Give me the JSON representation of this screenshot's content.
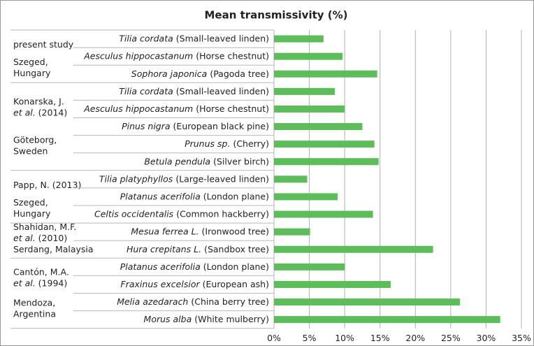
{
  "chart_data": {
    "type": "bar",
    "orientation": "horizontal",
    "title": "Mean transmissivity (%)",
    "color": "#5cbd5a",
    "grid": true,
    "xlim": [
      0,
      35
    ],
    "xticks": [
      {
        "value": 0,
        "label": "0%"
      },
      {
        "value": 5,
        "label": "5%"
      },
      {
        "value": 10,
        "label": "10%"
      },
      {
        "value": 15,
        "label": "15%"
      },
      {
        "value": 20,
        "label": "20%"
      },
      {
        "value": 25,
        "label": "25%"
      },
      {
        "value": 30,
        "label": "30%"
      },
      {
        "value": 35,
        "label": "35%"
      }
    ],
    "groups": [
      {
        "study": [
          [
            {
              "text": "present study"
            }
          ]
        ],
        "location": [
          [
            {
              "text": "Szeged,"
            }
          ],
          [
            {
              "text": "Hungary"
            }
          ]
        ],
        "rows": [
          {
            "species": "Tilia cordata",
            "common": "(Small-leaved linden)",
            "value": 7.0
          },
          {
            "species": "Aesculus hippocastanum",
            "common": "(Horse chestnut)",
            "value": 9.7
          },
          {
            "species": "Sophora japonica",
            "common": "(Pagoda tree)",
            "value": 14.6
          }
        ]
      },
      {
        "study": [
          [
            {
              "text": "Konarska, J."
            }
          ],
          [
            {
              "text": "et al.",
              "italic": true
            },
            {
              "text": "(2014)"
            }
          ]
        ],
        "location": [
          [
            {
              "text": "Göteborg,"
            }
          ],
          [
            {
              "text": "Sweden"
            }
          ]
        ],
        "rows": [
          {
            "species": "Tilia cordata",
            "common": "(Small-leaved linden)",
            "value": 8.6
          },
          {
            "species": "Aesculus hippocastanum",
            "common": "(Horse chestnut)",
            "value": 10.0
          },
          {
            "species": "Pinus nigra",
            "common": "(European black pine)",
            "value": 12.5
          },
          {
            "species": "Prunus sp.",
            "common": "(Cherry)",
            "value": 14.2
          },
          {
            "species": "Betula pendula",
            "common": "(Silver birch)",
            "value": 14.8
          }
        ]
      },
      {
        "study": [
          [
            {
              "text": "Papp, N. (2013)"
            }
          ]
        ],
        "location": [
          [
            {
              "text": "Szeged,"
            }
          ],
          [
            {
              "text": "Hungary"
            }
          ]
        ],
        "rows": [
          {
            "species": "Tilia platyphyllos",
            "common": "(Large-leaved linden)",
            "value": 4.7
          },
          {
            "species": "Platanus acerifolia",
            "common": "(London plane)",
            "value": 9.0
          },
          {
            "species": "Celtis occidentalis",
            "common": "(Common hackberry)",
            "value": 14.0
          }
        ]
      },
      {
        "study": [
          [
            {
              "text": "Shahidan, M.F."
            }
          ],
          [
            {
              "text": "et al.",
              "italic": true
            },
            {
              "text": "(2010)"
            }
          ]
        ],
        "location": [
          [
            {
              "text": "Serdang, Malaysia"
            }
          ]
        ],
        "rows": [
          {
            "species": "Mesua ferrea L.",
            "common": "(Ironwood tree)",
            "value": 5.1
          },
          {
            "species": "Hura crepitans L.",
            "common": "(Sandbox tree)",
            "value": 22.5
          }
        ]
      },
      {
        "study": [
          [
            {
              "text": "Cantón, M.A."
            }
          ],
          [
            {
              "text": "et al.",
              "italic": true
            },
            {
              "text": "(1994)"
            }
          ]
        ],
        "location": [
          [
            {
              "text": "Mendoza,"
            }
          ],
          [
            {
              "text": "Argentina"
            }
          ]
        ],
        "rows": [
          {
            "species": "Platanus acerifolia",
            "common": "(London plane)",
            "value": 10.0
          },
          {
            "species": "Fraxinus excelsior",
            "common": "(European ash)",
            "value": 16.5
          },
          {
            "species": "Melia azedarach",
            "common": "(China berry tree)",
            "value": 26.3
          },
          {
            "species": "Morus alba",
            "common": "(White mulberry)",
            "value": 32.0
          }
        ]
      }
    ]
  }
}
